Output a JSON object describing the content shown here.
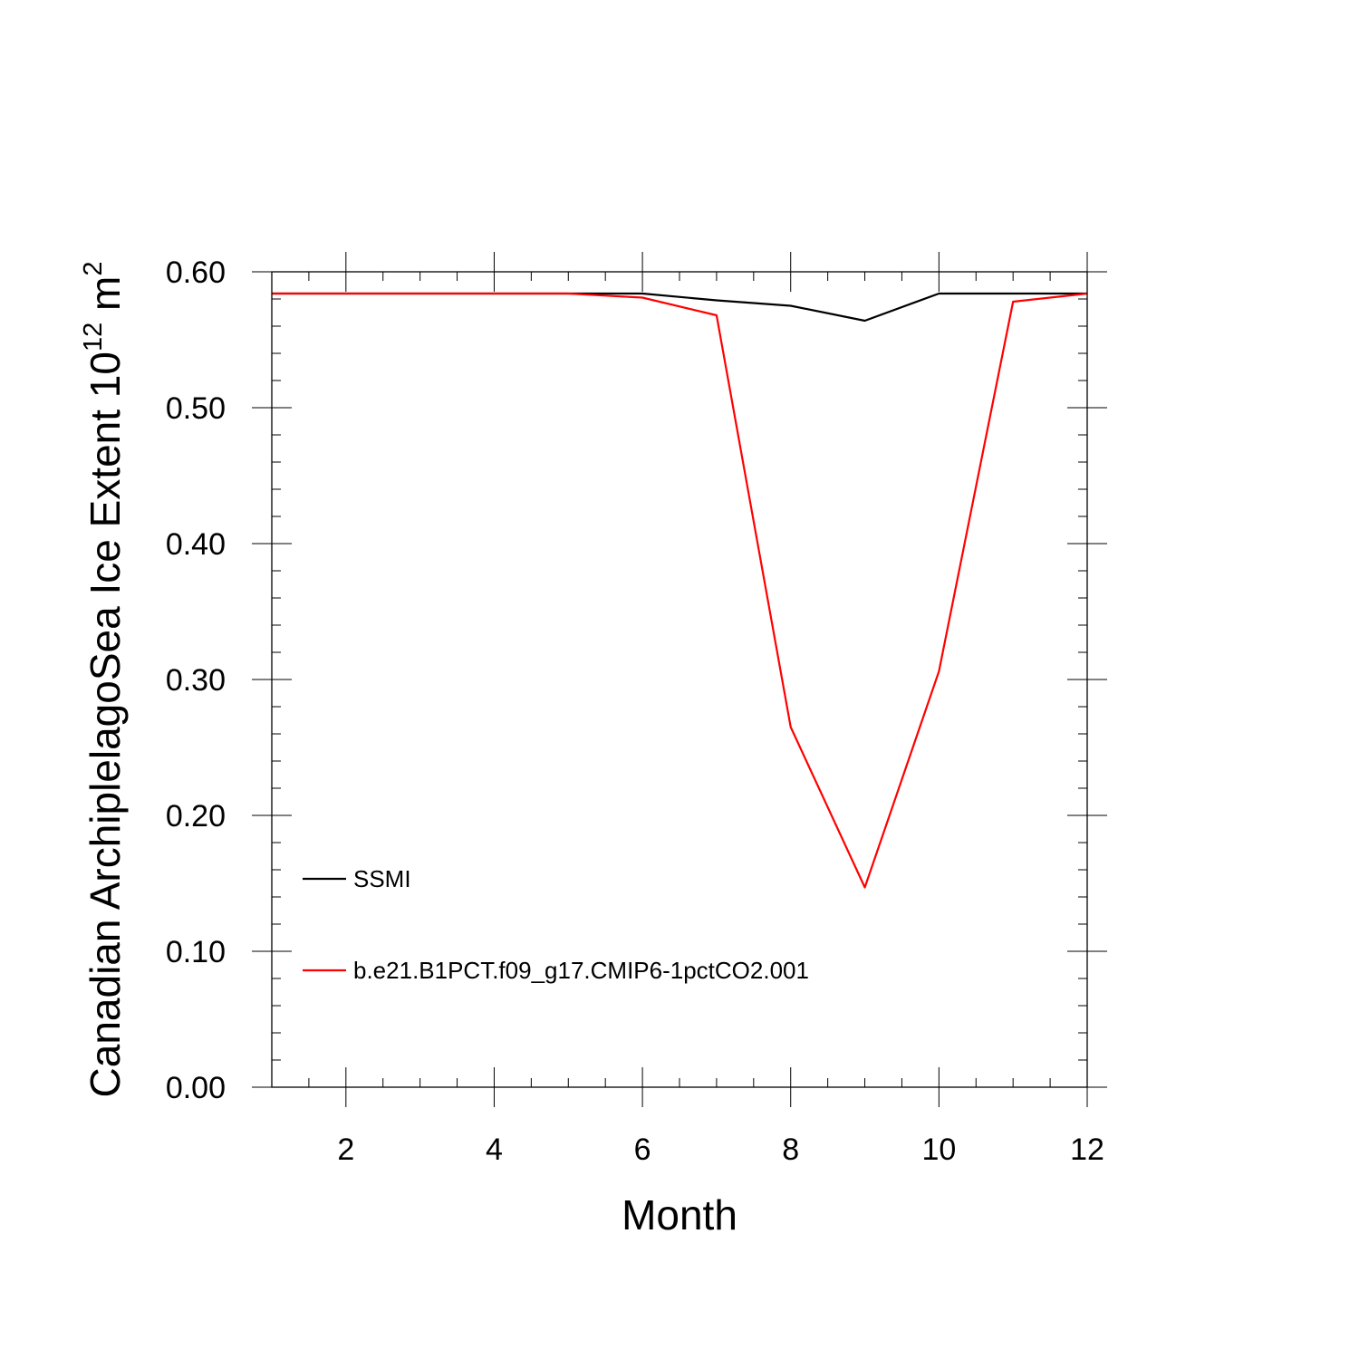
{
  "chart_data": {
    "type": "line",
    "title": "",
    "xlabel": "Month",
    "ylabel": {
      "main": "Canadian ArchiplelagoSea Ice Extent 10",
      "superscript_1": "12",
      "unit": " m",
      "superscript_2": "2"
    },
    "xlim": [
      1,
      12
    ],
    "ylim": [
      0,
      0.6
    ],
    "x_ticks": [
      2,
      4,
      6,
      8,
      10,
      12
    ],
    "x_tick_labels": [
      "2",
      "4",
      "6",
      "8",
      "10",
      "12"
    ],
    "y_ticks": [
      0,
      0.1,
      0.2,
      0.3,
      0.4,
      0.5,
      0.6
    ],
    "y_tick_labels": [
      "0.00",
      "0.10",
      "0.20",
      "0.30",
      "0.40",
      "0.50",
      "0.60"
    ],
    "x_minor_step": 0.5,
    "y_minor_step": 0.02,
    "grid": false,
    "legend_placement": "lower-left inside",
    "x": [
      1,
      2,
      3,
      4,
      5,
      6,
      7,
      8,
      9,
      10,
      11,
      12
    ],
    "series": [
      {
        "name": "SSMI",
        "color": "#000000",
        "values": [
          0.584,
          0.584,
          0.584,
          0.584,
          0.584,
          0.584,
          0.579,
          0.575,
          0.564,
          0.584,
          0.584,
          0.584
        ]
      },
      {
        "name": "b.e21.B1PCT.f09_g17.CMIP6-1pctCO2.001",
        "color": "#ff0000",
        "values": [
          0.584,
          0.584,
          0.584,
          0.584,
          0.584,
          0.581,
          0.568,
          0.265,
          0.147,
          0.306,
          0.578,
          0.584
        ]
      }
    ]
  }
}
